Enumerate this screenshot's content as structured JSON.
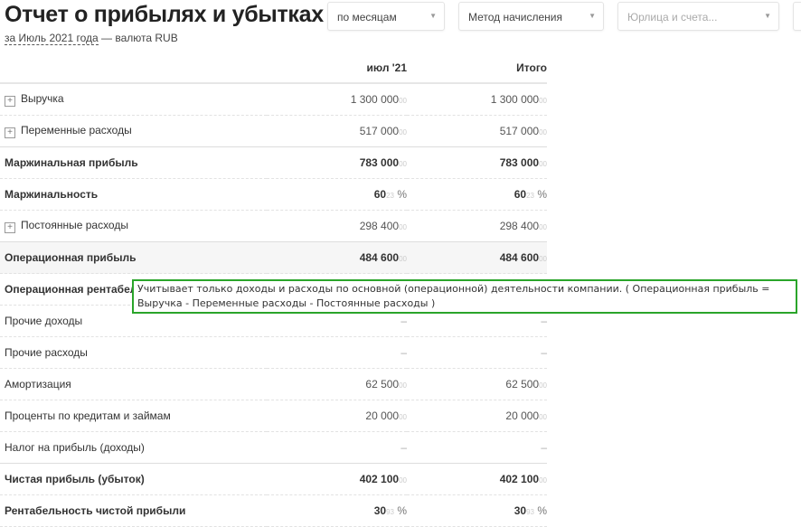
{
  "header": {
    "title": "Отчет о прибылях и убытках",
    "period": "за Июль 2021 года",
    "currency": "— валюта RUB"
  },
  "filters": {
    "grouping": "по месяцам",
    "method": "Метод начисления",
    "entities_placeholder": "Юрлица и счета..."
  },
  "table": {
    "columns": [
      "",
      "июл '21",
      "Итого"
    ],
    "rows": [
      {
        "label": "Выручка",
        "expandable": true,
        "v1": "1 300 000",
        "v2": "1 300 000",
        "dec": "00"
      },
      {
        "label": "Переменные расходы",
        "expandable": true,
        "v1": "517 000",
        "v2": "517 000",
        "dec": "00"
      },
      {
        "label": "Маржинальная прибыль",
        "bold": true,
        "v1": "783 000",
        "v2": "783 000",
        "dec": "00"
      },
      {
        "label": "Маржинальность",
        "bold": true,
        "v1": "60",
        "v2": "60",
        "dec": "23",
        "pct": "%"
      },
      {
        "label": "Постоянные расходы",
        "expandable": true,
        "v1": "298 400",
        "v2": "298 400",
        "dec": "00"
      },
      {
        "label": "Операционная прибыль",
        "bold": true,
        "v1": "484 600",
        "v2": "484 600",
        "dec": "00"
      },
      {
        "label": "Операционная рентабельность",
        "bold": true,
        "v1": "",
        "v2": "",
        "dec": ""
      },
      {
        "label": "Прочие доходы",
        "v1": "–",
        "v2": "–",
        "dec": ""
      },
      {
        "label": "Прочие расходы",
        "v1": "–",
        "v2": "–",
        "dec": ""
      },
      {
        "label": "Амортизация",
        "v1": "62 500",
        "v2": "62 500",
        "dec": "00"
      },
      {
        "label": "Проценты по кредитам и займам",
        "v1": "20 000",
        "v2": "20 000",
        "dec": "00"
      },
      {
        "label": "Налог на прибыль (доходы)",
        "v1": "–",
        "v2": "–",
        "dec": ""
      },
      {
        "label": "Чистая прибыль (убыток)",
        "bold": true,
        "v1": "402 100",
        "v2": "402 100",
        "dec": "00"
      },
      {
        "label": "Рентабельность чистой прибыли",
        "bold": true,
        "v1": "30",
        "v2": "30",
        "dec": "93",
        "pct": "%"
      }
    ]
  },
  "tooltip": "Учитывает только доходы и расходы по основной (операционной) деятельности компании. ( Операционная прибыль = Выручка - Переменные расходы - Постоянные расходы )"
}
